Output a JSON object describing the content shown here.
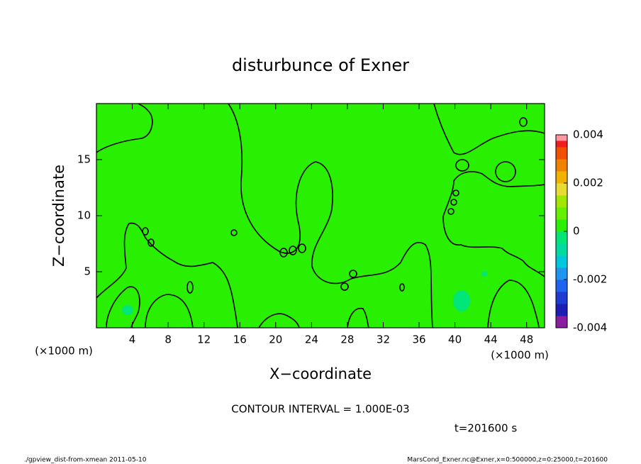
{
  "chart_data": {
    "type": "contour",
    "title": "disturbunce of Exner",
    "xlabel": "X−coordinate",
    "ylabel": "Z−coordinate",
    "x_unit": "(×1000 m)",
    "y_unit": "(×1000 m)",
    "xlim": [
      0,
      50
    ],
    "xticks": [
      4,
      8,
      12,
      16,
      20,
      24,
      28,
      32,
      36,
      40,
      44,
      48
    ],
    "ylim": [
      0,
      20
    ],
    "yticks": [
      5,
      10,
      15
    ],
    "colorbar": {
      "lim": [
        -0.004,
        0.004
      ],
      "ticks": [
        -0.004,
        -0.002,
        0,
        0.002,
        0.004
      ],
      "colors": [
        "#8b1ea0",
        "#1e1eb4",
        "#1e3cd2",
        "#1e64f0",
        "#1e96f0",
        "#00c8dc",
        "#00dca0",
        "#00e678",
        "#28f000",
        "#64f000",
        "#a0e600",
        "#e6dc32",
        "#f0b400",
        "#f08200",
        "#f05000",
        "#f01e1e"
      ],
      "top_color": "#ff96a0"
    },
    "field_color_index": 8,
    "patch_color_index": 7,
    "contour_interval": "CONTOUR INTERVAL = 1.000E-03",
    "time_label": "t=201600 s",
    "footer_left": "./gpview_dist-from-xmean  2011-05-10",
    "footer_right": "MarsCond_Exner.nc@Exner,x=0:500000,z=0:25000,t=201600"
  }
}
